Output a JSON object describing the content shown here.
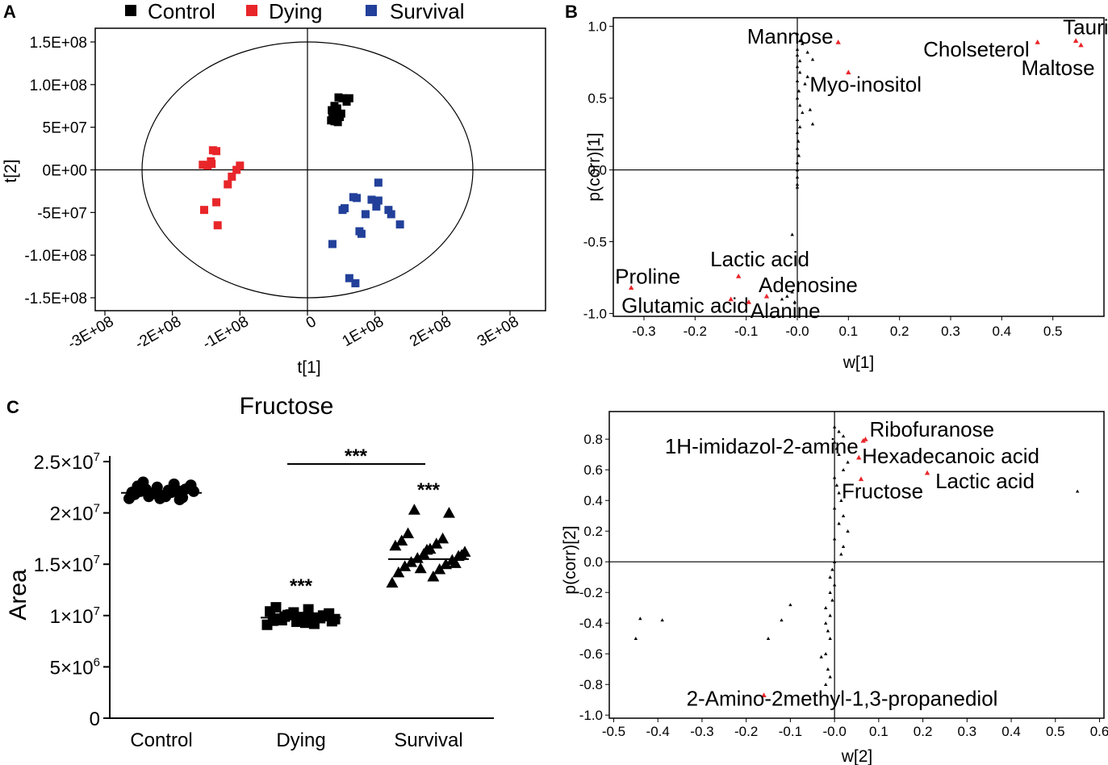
{
  "panel_labels": {
    "a": "A",
    "b": "B",
    "c": "C"
  },
  "colors": {
    "control": "#000000",
    "dying": "#e8262a",
    "survival": "#22409a",
    "highlight": "#e8262a",
    "other": "#000000"
  },
  "chart_data": [
    {
      "id": "A",
      "type": "scatter",
      "xlabel": "t[1]",
      "ylabel": "t[2]",
      "xlim": [
        -300000000,
        300000000
      ],
      "ylim": [
        -150000000,
        150000000
      ],
      "xticks": [
        -300000000,
        -200000000,
        -100000000,
        0,
        100000000,
        200000000,
        300000000
      ],
      "xtick_labels": [
        "-3E+08",
        "-2E+08",
        "-1E+08",
        "0",
        "1E+08",
        "2E+08",
        "3E+08"
      ],
      "yticks": [
        150000000,
        100000000,
        50000000,
        0,
        -50000000,
        -100000000,
        -150000000
      ],
      "ytick_labels": [
        "1.5E+08",
        "1.0E+08",
        "5E+07",
        "0E+00",
        "-5E+07",
        "-1.0E+08",
        "-1.5E+08"
      ],
      "legend": [
        "Control",
        "Dying",
        "Survival"
      ],
      "ellipse": {
        "rx": 245000000,
        "ry": 150000000
      },
      "series": [
        {
          "name": "Control",
          "color_key": "control",
          "points": [
            [
              40000000,
              75000000
            ],
            [
              46000000,
              85000000
            ],
            [
              52000000,
              84000000
            ],
            [
              62000000,
              84000000
            ],
            [
              58000000,
              80000000
            ],
            [
              44000000,
              72000000
            ],
            [
              36000000,
              70000000
            ],
            [
              37000000,
              65000000
            ],
            [
              42000000,
              64000000
            ],
            [
              48000000,
              62000000
            ],
            [
              35000000,
              58000000
            ],
            [
              40000000,
              57000000
            ],
            [
              45000000,
              56000000
            ],
            [
              50000000,
              66000000
            ]
          ]
        },
        {
          "name": "Dying",
          "color_key": "dying",
          "points": [
            [
              -135000000,
              22000000
            ],
            [
              -140000000,
              23000000
            ],
            [
              -143000000,
              10000000
            ],
            [
              -148000000,
              5000000
            ],
            [
              -155000000,
              6000000
            ],
            [
              -142000000,
              7000000
            ],
            [
              -100000000,
              5000000
            ],
            [
              -105000000,
              0
            ],
            [
              -112000000,
              -8000000
            ],
            [
              -118000000,
              -17000000
            ],
            [
              -135000000,
              -38000000
            ],
            [
              -153000000,
              -47000000
            ],
            [
              -133000000,
              -65000000
            ]
          ]
        },
        {
          "name": "Survival",
          "color_key": "survival",
          "points": [
            [
              105000000,
              -15000000
            ],
            [
              68000000,
              -32000000
            ],
            [
              73000000,
              -33000000
            ],
            [
              95000000,
              -35000000
            ],
            [
              105000000,
              -36000000
            ],
            [
              102000000,
              -43000000
            ],
            [
              86000000,
              -52000000
            ],
            [
              55000000,
              -45000000
            ],
            [
              52000000,
              -47000000
            ],
            [
              120000000,
              -47000000
            ],
            [
              124000000,
              -52000000
            ],
            [
              137000000,
              -64000000
            ],
            [
              77000000,
              -72000000
            ],
            [
              80000000,
              -75000000
            ],
            [
              37000000,
              -87000000
            ],
            [
              62000000,
              -127000000
            ],
            [
              71000000,
              -133000000
            ]
          ]
        }
      ]
    },
    {
      "id": "B",
      "type": "scatter",
      "xlabel": "w[1]",
      "ylabel": "p(corr)[1]",
      "xlim": [
        -0.36,
        0.6
      ],
      "ylim": [
        -1.02,
        1.06
      ],
      "xticks": [
        -0.3,
        -0.2,
        -0.1,
        0.0,
        0.1,
        0.2,
        0.3,
        0.4,
        0.5
      ],
      "xtick_labels": [
        "-0.3",
        "-0.2",
        "-0.1",
        "-0.0",
        "0.1",
        "0.2",
        "0.3",
        "0.4",
        "0.5"
      ],
      "yticks": [
        1.0,
        0.5,
        0.0,
        -0.5,
        -1.0
      ],
      "ytick_labels": [
        "1.0",
        "0.5",
        "0.0",
        "-0.5",
        "-1.0"
      ],
      "highlighted": [
        {
          "label": "Taurine",
          "x": 0.545,
          "y": 0.9
        },
        {
          "label": "Cholseterol",
          "x": 0.47,
          "y": 0.89
        },
        {
          "label": "Maltose",
          "x": 0.555,
          "y": 0.87
        },
        {
          "label": "Mannose",
          "x": 0.08,
          "y": 0.89
        },
        {
          "label": "Myo-inositol",
          "x": 0.1,
          "y": 0.68
        },
        {
          "label": "Lactic acid",
          "x": -0.115,
          "y": -0.74
        },
        {
          "label": "Proline",
          "x": -0.325,
          "y": -0.82
        },
        {
          "label": "Adenosine",
          "x": -0.06,
          "y": -0.88
        },
        {
          "label": "Glutamic acid",
          "x": -0.13,
          "y": -0.9
        },
        {
          "label": "Alanine",
          "x": -0.095,
          "y": -0.92
        }
      ],
      "other_points": [
        [
          0.0,
          0.95
        ],
        [
          0.005,
          0.9
        ],
        [
          0.01,
          0.88
        ],
        [
          0.0,
          0.84
        ],
        [
          0.0,
          0.8
        ],
        [
          0.005,
          0.76
        ],
        [
          0.0,
          0.72
        ],
        [
          0.005,
          0.68
        ],
        [
          0.0,
          0.62
        ],
        [
          0.003,
          0.55
        ],
        [
          0.0,
          0.5
        ],
        [
          0.005,
          0.45
        ],
        [
          0.01,
          0.4
        ],
        [
          0.0,
          0.35
        ],
        [
          0.005,
          0.3
        ],
        [
          0.0,
          0.26
        ],
        [
          0.002,
          0.2
        ],
        [
          0.0,
          0.15
        ],
        [
          0.003,
          0.1
        ],
        [
          0.0,
          0.05
        ],
        [
          0.0,
          0.0
        ],
        [
          0.0,
          -0.05
        ],
        [
          0.0,
          -0.1
        ],
        [
          0.0,
          -0.12
        ],
        [
          0.02,
          0.82
        ],
        [
          0.03,
          0.77
        ],
        [
          0.02,
          0.65
        ],
        [
          0.025,
          0.42
        ],
        [
          0.03,
          0.32
        ],
        [
          0.015,
          0.6
        ],
        [
          -0.01,
          -0.45
        ],
        [
          -0.02,
          -0.88
        ],
        [
          -0.03,
          -0.9
        ],
        [
          -0.01,
          -0.85
        ],
        [
          -0.005,
          -0.92
        ]
      ]
    },
    {
      "id": "C",
      "type": "scatter",
      "title": "Fructose",
      "ylabel": "Area",
      "categories": [
        "Control",
        "Dying",
        "Survival"
      ],
      "ylim": [
        0,
        25000000
      ],
      "yticks": [
        0,
        5000000,
        10000000,
        15000000,
        20000000,
        25000000
      ],
      "ytick_labels": [
        {
          "base": "0",
          "exp": ""
        },
        {
          "base": "5×10",
          "exp": "6"
        },
        {
          "base": "1×10",
          "exp": "7"
        },
        {
          "base": "1.5×10",
          "exp": "7"
        },
        {
          "base": "2×10",
          "exp": "7"
        },
        {
          "base": "2.5×10",
          "exp": "7"
        }
      ],
      "series": [
        {
          "name": "Control",
          "marker": "circle",
          "values": [
            21400000,
            21600000,
            21800000,
            22000000,
            22100000,
            22200000,
            22300000,
            21500000,
            21900000,
            22400000,
            22500000,
            22100000,
            21700000,
            22000000,
            22200000,
            22600000,
            22800000,
            23000000,
            21300000,
            21600000,
            22300000,
            21900000,
            22700000,
            21400000
          ]
        },
        {
          "name": "Dying",
          "marker": "square",
          "values": [
            9100000,
            9300000,
            9500000,
            9600000,
            9700000,
            9800000,
            9900000,
            10000000,
            10100000,
            10200000,
            9400000,
            9650000,
            9850000,
            10400000,
            10600000,
            10800000,
            9200000,
            9550000,
            9750000,
            10050000,
            9950000,
            10300000,
            9450000,
            9800000
          ]
        },
        {
          "name": "Survival",
          "marker": "triangle",
          "values": [
            13200000,
            13800000,
            14200000,
            14500000,
            14800000,
            15000000,
            15200000,
            15400000,
            15600000,
            15800000,
            16000000,
            16200000,
            16500000,
            16800000,
            17000000,
            17300000,
            17500000,
            18000000,
            20000000,
            20300000,
            15100000,
            14600000,
            15900000,
            16400000
          ]
        }
      ],
      "medians": [
        21950000,
        9800000,
        15500000
      ],
      "annotations": [
        {
          "text": "***",
          "group": "Dying"
        },
        {
          "text": "***",
          "group": "Survival"
        },
        {
          "text": "***",
          "group": "bracket"
        }
      ]
    },
    {
      "id": "D",
      "type": "scatter",
      "xlabel": "w[2]",
      "ylabel": "p(corr)[2]",
      "xlim": [
        -0.51,
        0.61
      ],
      "ylim": [
        -1.02,
        0.98
      ],
      "xticks": [
        -0.5,
        -0.4,
        -0.3,
        -0.2,
        -0.1,
        0.0,
        0.1,
        0.2,
        0.3,
        0.4,
        0.5,
        0.6
      ],
      "xtick_labels": [
        "-0.5",
        "-0.4",
        "-0.3",
        "-0.2",
        "-0.1",
        "-0.0",
        "0.1",
        "0.2",
        "0.3",
        "0.4",
        "0.5",
        "0.6"
      ],
      "yticks": [
        0.8,
        0.6,
        0.4,
        0.2,
        0.0,
        -0.2,
        -0.4,
        -0.6,
        -0.8,
        -1.0
      ],
      "ytick_labels": [
        "0.8",
        "0.6",
        "0.4",
        "0.2",
        "0.0",
        "-0.2",
        "-0.4",
        "-0.6",
        "-0.8",
        "-1.0"
      ],
      "highlighted": [
        {
          "label": "Ribofuranose",
          "x": 0.07,
          "y": 0.8
        },
        {
          "label": "1H-imidazol-2-amine",
          "x": 0.065,
          "y": 0.79
        },
        {
          "label": "Hexadecanoic acid",
          "x": 0.055,
          "y": 0.68
        },
        {
          "label": "Lactic acid",
          "x": 0.21,
          "y": 0.58
        },
        {
          "label": "Fructose",
          "x": 0.06,
          "y": 0.54
        },
        {
          "label": "2-Amino-2methyl-1,3-propanediol",
          "x": -0.16,
          "y": -0.87
        }
      ],
      "other_points": [
        [
          0.0,
          0.88
        ],
        [
          0.01,
          0.85
        ],
        [
          0.02,
          0.82
        ],
        [
          0.0,
          0.78
        ],
        [
          0.005,
          0.74
        ],
        [
          0.01,
          0.7
        ],
        [
          0.03,
          0.65
        ],
        [
          0.02,
          0.6
        ],
        [
          0.0,
          0.55
        ],
        [
          0.005,
          0.5
        ],
        [
          0.01,
          0.45
        ],
        [
          0.015,
          0.4
        ],
        [
          0.0,
          0.35
        ],
        [
          0.02,
          0.3
        ],
        [
          0.01,
          0.25
        ],
        [
          0.03,
          0.2
        ],
        [
          0.0,
          0.15
        ],
        [
          0.02,
          0.1
        ],
        [
          0.015,
          0.05
        ],
        [
          0.55,
          0.46
        ],
        [
          0.0,
          0.0
        ],
        [
          -0.005,
          -0.05
        ],
        [
          -0.01,
          -0.1
        ],
        [
          0.0,
          -0.15
        ],
        [
          -0.01,
          -0.2
        ],
        [
          -0.005,
          -0.25
        ],
        [
          -0.02,
          -0.3
        ],
        [
          -0.01,
          -0.35
        ],
        [
          -0.02,
          -0.4
        ],
        [
          -0.015,
          -0.45
        ],
        [
          -0.01,
          -0.5
        ],
        [
          -0.02,
          -0.6
        ],
        [
          -0.015,
          -0.7
        ],
        [
          -0.01,
          -0.75
        ],
        [
          -0.02,
          -0.8
        ],
        [
          -0.1,
          -0.28
        ],
        [
          -0.12,
          -0.38
        ],
        [
          -0.15,
          -0.5
        ],
        [
          -0.45,
          -0.5
        ],
        [
          -0.44,
          -0.37
        ],
        [
          -0.39,
          -0.38
        ],
        [
          -0.03,
          -0.62
        ]
      ]
    }
  ]
}
